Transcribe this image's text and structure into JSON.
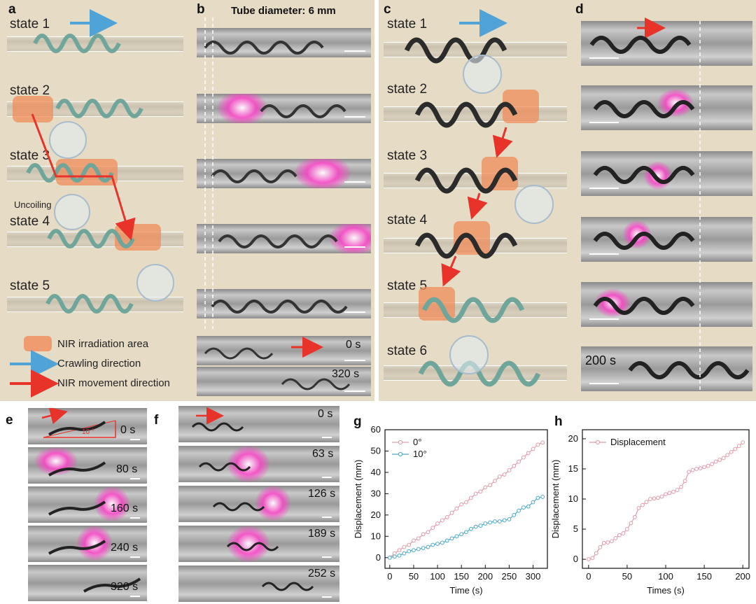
{
  "panels": {
    "a": "a",
    "b": "b",
    "c": "c",
    "d": "d",
    "e": "e",
    "f": "f",
    "g": "g",
    "h": "h"
  },
  "panel_a": {
    "states": [
      "state 1",
      "state 2",
      "state 3",
      "state 4",
      "state 5"
    ],
    "uncoiling": "Uncoiling",
    "legend": {
      "nir": "NIR irradiation area",
      "crawl": "Crawling direction",
      "move": "NIR movement direction"
    }
  },
  "panel_b": {
    "title": "Tube diameter: 6 mm",
    "t0": "0 s",
    "t1": "320 s"
  },
  "panel_c": {
    "states": [
      "state 1",
      "state 2",
      "state 3",
      "state 4",
      "state 5",
      "state 6"
    ]
  },
  "panel_d": {
    "time": "200 s"
  },
  "panel_e": {
    "angle": "10 °",
    "times": [
      "0 s",
      "80 s",
      "160 s",
      "240 s",
      "320 s"
    ]
  },
  "panel_f": {
    "times": [
      "0 s",
      "63 s",
      "126 s",
      "189 s",
      "252 s"
    ]
  },
  "colors": {
    "blue_arrow": "#4fa3d6",
    "red_arrow": "#e8332a",
    "nir": "#f08c5a",
    "series0": "#e19aa8",
    "series10": "#4aa8cc"
  },
  "chart_data": [
    {
      "type": "line",
      "panel": "g",
      "xlabel": "Time (s)",
      "ylabel": "Displacement (mm)",
      "xlim": [
        -10,
        330
      ],
      "ylim": [
        -5,
        60
      ],
      "xticks": [
        0,
        50,
        100,
        150,
        200,
        250,
        300
      ],
      "yticks": [
        0,
        10,
        20,
        30,
        40,
        50,
        60
      ],
      "legend_position": "top-left",
      "series": [
        {
          "name": "0°",
          "color": "#e19aa8",
          "x": [
            0,
            10,
            20,
            30,
            40,
            50,
            60,
            70,
            80,
            90,
            100,
            110,
            120,
            130,
            140,
            150,
            160,
            170,
            180,
            190,
            200,
            210,
            220,
            230,
            240,
            250,
            260,
            270,
            280,
            290,
            300,
            310,
            320
          ],
          "y": [
            0,
            2,
            3.5,
            5,
            6,
            8,
            9,
            11,
            12,
            14,
            16,
            17.5,
            19,
            21,
            23,
            25,
            26,
            28,
            30,
            31,
            33,
            34,
            36,
            38,
            39,
            41,
            43,
            45,
            47,
            49,
            51,
            53,
            54
          ]
        },
        {
          "name": "10°",
          "color": "#4aa8cc",
          "x": [
            0,
            10,
            20,
            30,
            40,
            50,
            60,
            70,
            80,
            90,
            100,
            110,
            120,
            130,
            140,
            150,
            160,
            170,
            180,
            190,
            200,
            210,
            220,
            230,
            240,
            250,
            260,
            270,
            280,
            290,
            300,
            310,
            320
          ],
          "y": [
            0,
            0.5,
            1,
            2,
            3,
            3.5,
            4,
            4.5,
            5,
            6,
            6.5,
            7,
            8,
            9,
            10,
            11,
            12,
            13.5,
            14.5,
            15,
            16,
            16.5,
            17,
            17,
            17.5,
            18,
            20,
            22,
            23.5,
            24,
            26,
            28,
            28.5
          ]
        }
      ]
    },
    {
      "type": "line",
      "panel": "h",
      "xlabel": "Times (s)",
      "ylabel": "Displacement (mm)",
      "xlim": [
        -8,
        208
      ],
      "ylim": [
        -1.5,
        21.5
      ],
      "xticks": [
        0,
        50,
        100,
        150,
        200
      ],
      "yticks": [
        0,
        5,
        10,
        15,
        20
      ],
      "legend_position": "top-left",
      "series": [
        {
          "name": "Displacement",
          "color": "#e19aa8",
          "x": [
            0,
            5,
            10,
            15,
            20,
            25,
            30,
            35,
            40,
            45,
            50,
            55,
            60,
            65,
            70,
            75,
            80,
            85,
            90,
            95,
            100,
            105,
            110,
            115,
            120,
            125,
            130,
            135,
            140,
            145,
            150,
            155,
            160,
            165,
            170,
            175,
            180,
            185,
            190,
            195,
            200
          ],
          "y": [
            0,
            0.2,
            1,
            2,
            2.7,
            2.8,
            3,
            3.5,
            4,
            4.3,
            5,
            6,
            7,
            8.5,
            9,
            9.5,
            10,
            10.1,
            10.2,
            10.4,
            10.8,
            11,
            11.2,
            11.5,
            12,
            13,
            14.5,
            14.8,
            15,
            15.1,
            15.3,
            15.5,
            15.8,
            16.2,
            16.5,
            16.8,
            17.3,
            17.8,
            18.3,
            18.8,
            19.4
          ]
        }
      ]
    }
  ]
}
